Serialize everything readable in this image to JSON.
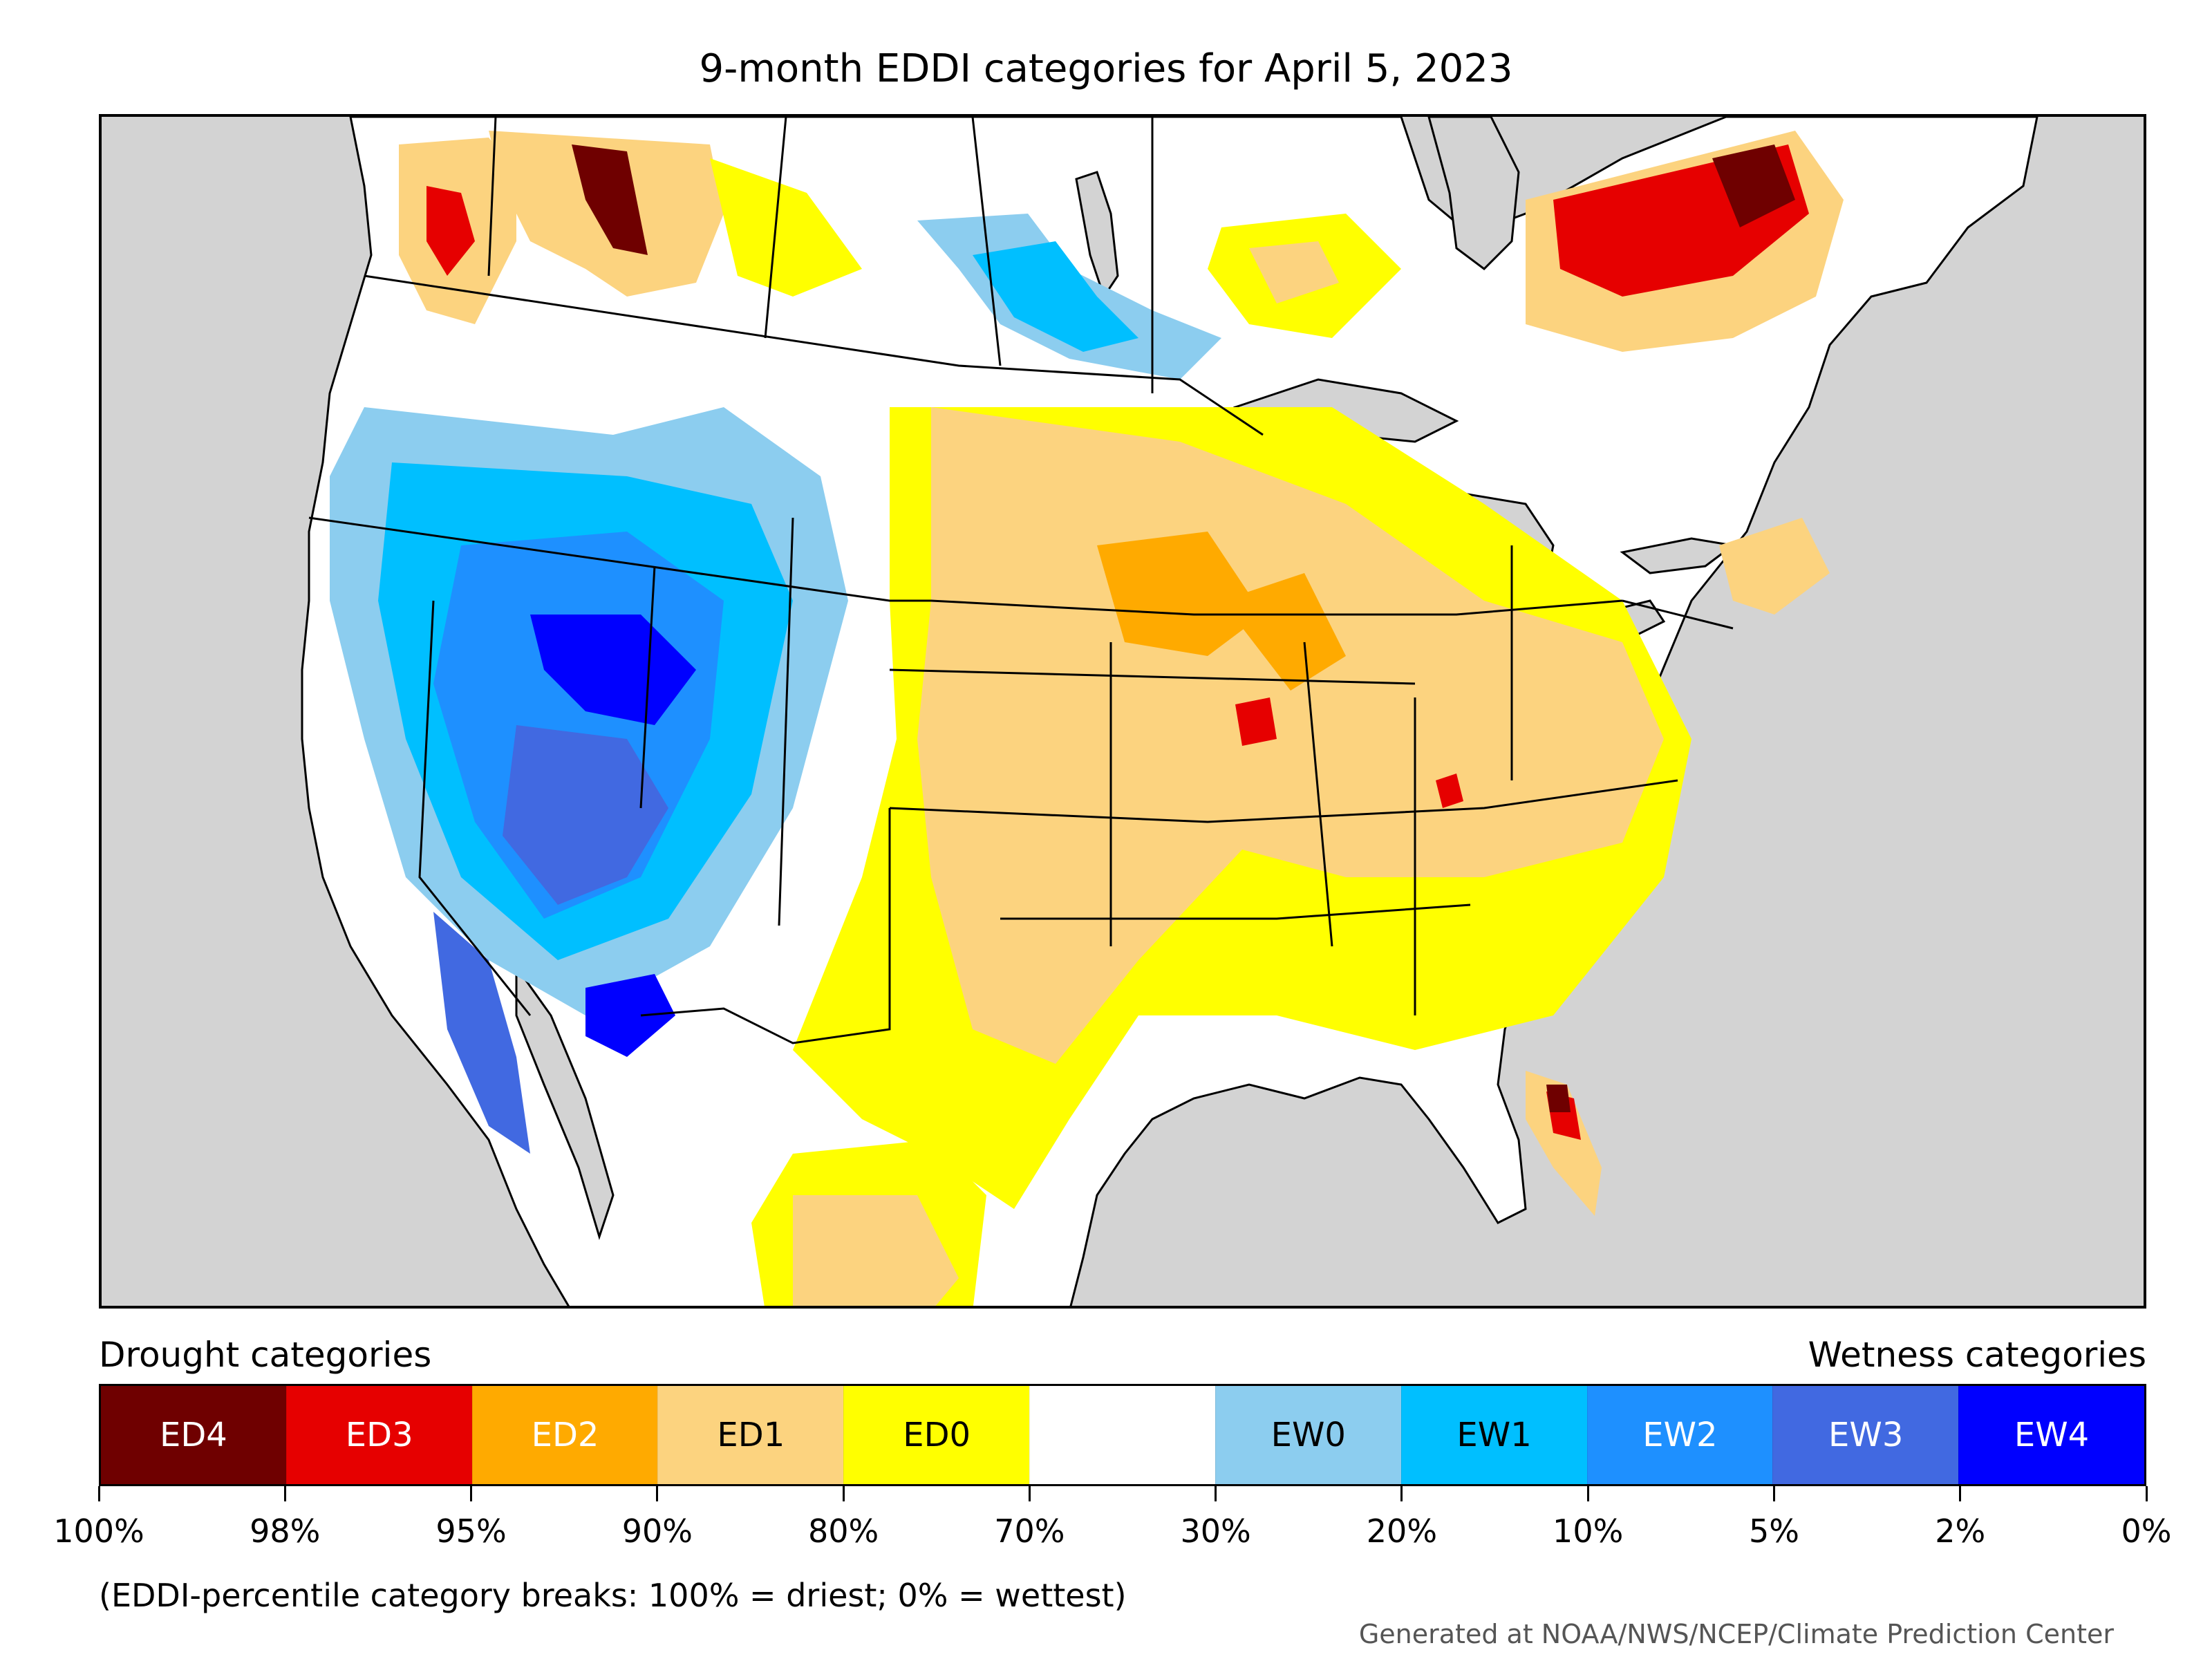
{
  "title": "9-month EDDI categories for April 5, 2023",
  "legend": {
    "drought_heading": "Drought categories",
    "wetness_heading": "Wetness categories",
    "categories": [
      {
        "label": "ED4",
        "color": "#6f0000",
        "text_color": "#ffffff"
      },
      {
        "label": "ED3",
        "color": "#e60000",
        "text_color": "#ffffff"
      },
      {
        "label": "ED2",
        "color": "#ffaa00",
        "text_color": "#ffffff"
      },
      {
        "label": "ED1",
        "color": "#fcd37f",
        "text_color": "#000000"
      },
      {
        "label": "ED0",
        "color": "#ffff00",
        "text_color": "#000000"
      },
      {
        "label": "",
        "color": "#ffffff",
        "text_color": "#000000"
      },
      {
        "label": "EW0",
        "color": "#8ccdef",
        "text_color": "#000000"
      },
      {
        "label": "EW1",
        "color": "#00bfff",
        "text_color": "#000000"
      },
      {
        "label": "EW2",
        "color": "#1e90ff",
        "text_color": "#ffffff"
      },
      {
        "label": "EW3",
        "color": "#4169e1",
        "text_color": "#ffffff"
      },
      {
        "label": "EW4",
        "color": "#0000ff",
        "text_color": "#ffffff"
      }
    ],
    "tick_labels": [
      "100%",
      "98%",
      "95%",
      "90%",
      "80%",
      "70%",
      "30%",
      "20%",
      "10%",
      "5%",
      "2%",
      "0%"
    ]
  },
  "footnote": "(EDDI-percentile category breaks: 100% = driest; 0% = wettest)",
  "credit": "Generated at NOAA/NWS/NCEP/Climate Prediction Center",
  "map": {
    "ocean_color": "#d3d3d3",
    "land_color": "#ffffff",
    "border_color": "#000000"
  }
}
